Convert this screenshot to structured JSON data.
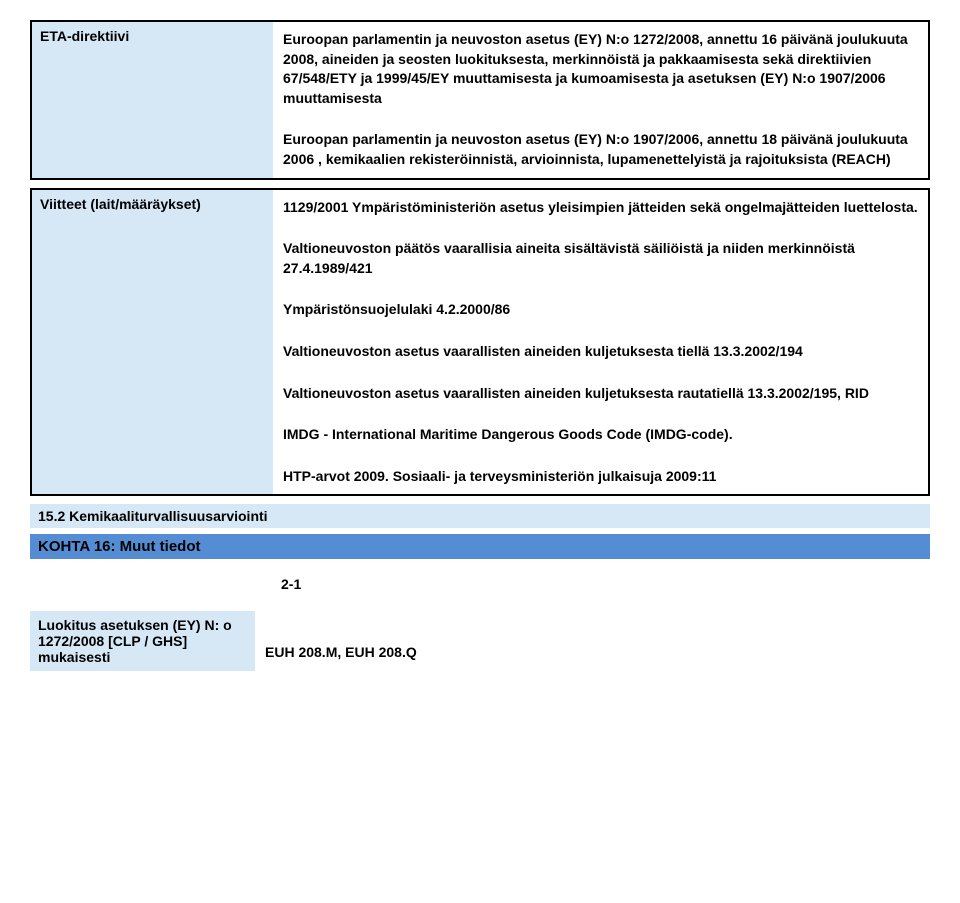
{
  "row1": {
    "label": "ETA-direktiivi",
    "para1": "Euroopan parlamentin ja neuvoston asetus (EY) N:o 1272/2008, annettu 16 päivänä joulukuuta 2008, aineiden ja seosten luokituksesta, merkinnöistä ja pakkaamisesta sekä direktiivien 67/548/ETY ja 1999/45/EY muuttamisesta ja kumoamisesta ja asetuksen (EY) N:o 1907/2006 muuttamisesta",
    "para2": "Euroopan parlamentin ja neuvoston asetus (EY) N:o 1907/2006, annettu 18 päivänä joulukuuta 2006 , kemikaalien rekisteröinnistä, arvioinnista, lupamenettelyistä ja rajoituksista (REACH)"
  },
  "row2": {
    "label": "Viitteet (lait/määräykset)",
    "para1": "1129/2001 Ympäristöministeriön asetus yleisimpien jätteiden sekä ongelmajätteiden luettelosta.",
    "para2": "Valtioneuvoston päätös vaarallisia aineita sisältävistä säiliöistä ja niiden merkinnöistä 27.4.1989/421",
    "para3": "Ympäristönsuojelulaki 4.2.2000/86",
    "para4": "Valtioneuvoston asetus vaarallisten aineiden kuljetuksesta tiellä 13.3.2002/194",
    "para5": "Valtioneuvoston asetus vaarallisten aineiden kuljetuksesta rautatiellä 13.3.2002/195, RID",
    "para6": "IMDG - International Maritime Dangerous Goods Code (IMDG-code).",
    "para7": "HTP-arvot 2009. Sosiaali- ja terveysministeriön julkaisuja 2009:11"
  },
  "stripe1": "15.2 Kemikaaliturvallisuusarviointi",
  "sectionHeader": "KOHTA 16: Muut tiedot",
  "post": {
    "value1": "2-1",
    "label": "Luokitus asetuksen (EY) N: o 1272/2008 [CLP / GHS] mukaisesti",
    "value2": "EUH 208.M, EUH 208.Q"
  },
  "colors": {
    "lightBlue": "#d6e7f5",
    "headerBlue": "#548dd4",
    "border": "#000000",
    "text": "#000000",
    "background": "#ffffff"
  },
  "fonts": {
    "family": "Arial",
    "bodySize": 14,
    "weight": "bold"
  }
}
